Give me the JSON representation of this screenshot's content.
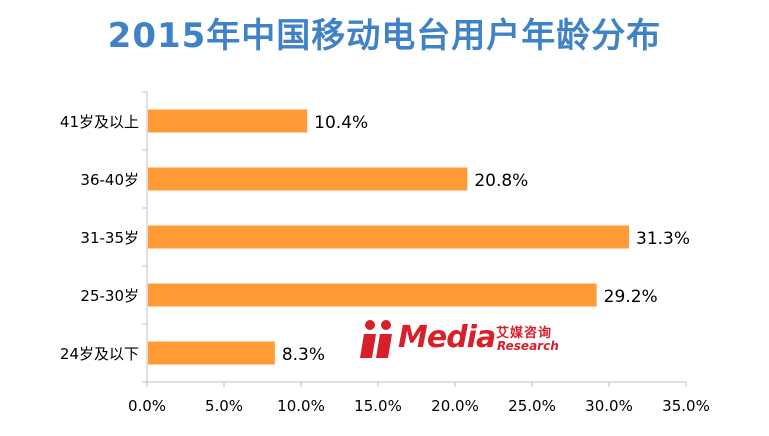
{
  "title": "2015年中国移动电台用户年龄分布",
  "logo": {
    "brand": "iiMedia",
    "text_main": "Media",
    "text_cn": "艾媒咨询",
    "text_en": "Research",
    "color": "#d8202b"
  },
  "colors": {
    "bar": "#ff9a35",
    "axis": "#bfbfbf",
    "title": "#3f83c6",
    "text": "#000000"
  },
  "chart_data": {
    "type": "bar",
    "orientation": "horizontal",
    "title": "2015年中国移动电台用户年龄分布",
    "categories": [
      "41岁及以上",
      "36-40岁",
      "31-35岁",
      "25-30岁",
      "24岁及以下"
    ],
    "values": [
      10.4,
      20.8,
      31.3,
      29.2,
      8.3
    ],
    "value_labels": [
      "10.4%",
      "20.8%",
      "31.3%",
      "29.2%",
      "8.3%"
    ],
    "xlim": [
      0,
      35
    ],
    "xticks": [
      0,
      5,
      10,
      15,
      20,
      25,
      30,
      35
    ],
    "xtick_labels": [
      "0.0%",
      "5.0%",
      "10.0%",
      "15.0%",
      "20.0%",
      "25.0%",
      "30.0%",
      "35.0%"
    ],
    "xlabel": "",
    "ylabel": "",
    "grid": false,
    "legend": "none"
  }
}
